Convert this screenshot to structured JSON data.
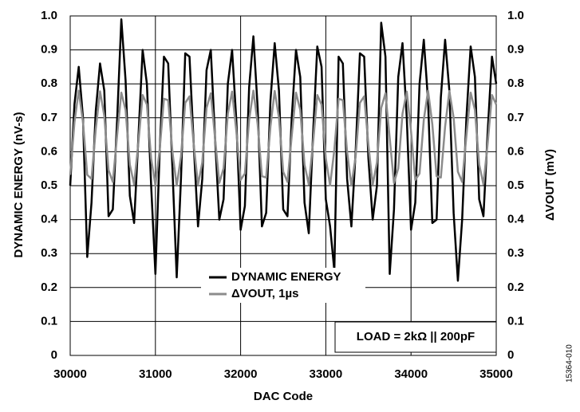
{
  "chart_data": {
    "type": "line",
    "xlabel": "DAC Code",
    "ylabel": "DYNAMIC ENERGY (nV-s)",
    "y2label": "ΔVOUT (mV)",
    "annotations": [
      "LOAD = 2kΩ || 200pF",
      "15364-010"
    ],
    "x": [
      30000,
      30050,
      30100,
      30150,
      30200,
      30250,
      30300,
      30350,
      30400,
      30450,
      30500,
      30550,
      30600,
      30650,
      30700,
      30750,
      30800,
      30850,
      30900,
      30950,
      31000,
      31050,
      31100,
      31150,
      31200,
      31250,
      31300,
      31350,
      31400,
      31450,
      31500,
      31550,
      31600,
      31650,
      31700,
      31750,
      31800,
      31850,
      31900,
      31950,
      32000,
      32050,
      32100,
      32150,
      32200,
      32250,
      32300,
      32350,
      32400,
      32450,
      32500,
      32550,
      32600,
      32650,
      32700,
      32750,
      32800,
      32850,
      32900,
      32950,
      33000,
      33050,
      33100,
      33150,
      33200,
      33250,
      33300,
      33350,
      33400,
      33450,
      33500,
      33550,
      33600,
      33650,
      33700,
      33750,
      33800,
      33850,
      33900,
      33950,
      34000,
      34050,
      34100,
      34150,
      34200,
      34250,
      34300,
      34350,
      34400,
      34450,
      34500,
      34550,
      34600,
      34650,
      34700,
      34750,
      34800,
      34850,
      34900,
      34950,
      35000
    ],
    "series": [
      {
        "name": "DYNAMIC ENERGY",
        "color": "#000000",
        "axis": "y",
        "values": [
          0.5,
          0.74,
          0.85,
          0.7,
          0.29,
          0.45,
          0.72,
          0.86,
          0.78,
          0.41,
          0.43,
          0.69,
          0.99,
          0.81,
          0.47,
          0.39,
          0.64,
          0.9,
          0.8,
          0.5,
          0.24,
          0.6,
          0.88,
          0.86,
          0.55,
          0.23,
          0.52,
          0.89,
          0.88,
          0.62,
          0.38,
          0.52,
          0.84,
          0.9,
          0.64,
          0.4,
          0.46,
          0.8,
          0.9,
          0.69,
          0.37,
          0.44,
          0.79,
          0.94,
          0.73,
          0.38,
          0.42,
          0.75,
          0.92,
          0.78,
          0.43,
          0.41,
          0.7,
          0.9,
          0.82,
          0.45,
          0.36,
          0.65,
          0.91,
          0.85,
          0.46,
          0.38,
          0.25,
          0.88,
          0.86,
          0.52,
          0.38,
          0.6,
          0.89,
          0.88,
          0.58,
          0.4,
          0.5,
          0.98,
          0.88,
          0.24,
          0.43,
          0.82,
          0.92,
          0.7,
          0.37,
          0.45,
          0.8,
          0.93,
          0.75,
          0.39,
          0.4,
          0.76,
          0.93,
          0.78,
          0.42,
          0.22,
          0.4,
          0.7,
          0.91,
          0.82,
          0.46,
          0.41,
          0.66,
          0.88,
          0.8
        ]
      },
      {
        "name": "ΔVOUT, 1µs",
        "color": "#8c8c8c",
        "axis": "y2",
        "values": [
          0.532,
          0.687,
          0.78,
          0.687,
          0.532,
          0.52,
          0.667,
          0.778,
          0.706,
          0.546,
          0.511,
          0.647,
          0.774,
          0.723,
          0.562,
          0.504,
          0.626,
          0.767,
          0.739,
          0.58,
          0.501,
          0.606,
          0.756,
          0.752,
          0.599,
          0.5,
          0.586,
          0.744,
          0.763,
          0.62,
          0.503,
          0.568,
          0.729,
          0.772,
          0.64,
          0.508,
          0.551,
          0.712,
          0.777,
          0.66,
          0.517,
          0.536,
          0.694,
          0.78,
          0.681,
          0.528,
          0.524,
          0.674,
          0.779,
          0.7,
          0.541,
          0.511,
          0.647,
          0.774,
          0.723,
          0.562,
          0.504,
          0.626,
          0.767,
          0.739,
          0.58,
          0.501,
          0.606,
          0.756,
          0.752,
          0.599,
          0.5,
          0.586,
          0.744,
          0.763,
          0.62,
          0.503,
          0.568,
          0.729,
          0.772,
          0.64,
          0.508,
          0.551,
          0.712,
          0.777,
          0.66,
          0.517,
          0.536,
          0.694,
          0.78,
          0.681,
          0.528,
          0.524,
          0.674,
          0.779,
          0.7,
          0.541,
          0.511,
          0.647,
          0.774,
          0.723,
          0.562,
          0.504,
          0.626,
          0.767,
          0.739
        ]
      }
    ],
    "xlim": [
      30000,
      35000
    ],
    "xticks": [
      30000,
      31000,
      32000,
      33000,
      34000,
      35000
    ],
    "ylim": [
      0,
      1
    ],
    "yticks": [
      0,
      0.1,
      0.2,
      0.3,
      0.4,
      0.5,
      0.6,
      0.7,
      0.8,
      0.9,
      {
        "value": 1,
        "label": "1.0"
      }
    ],
    "y2lim": [
      0,
      1
    ],
    "y2ticks": [
      0,
      0.1,
      0.2,
      0.3,
      0.4,
      0.5,
      0.6,
      0.7,
      0.8,
      0.9,
      {
        "value": 1,
        "label": "1.0"
      }
    ],
    "grid": true
  }
}
